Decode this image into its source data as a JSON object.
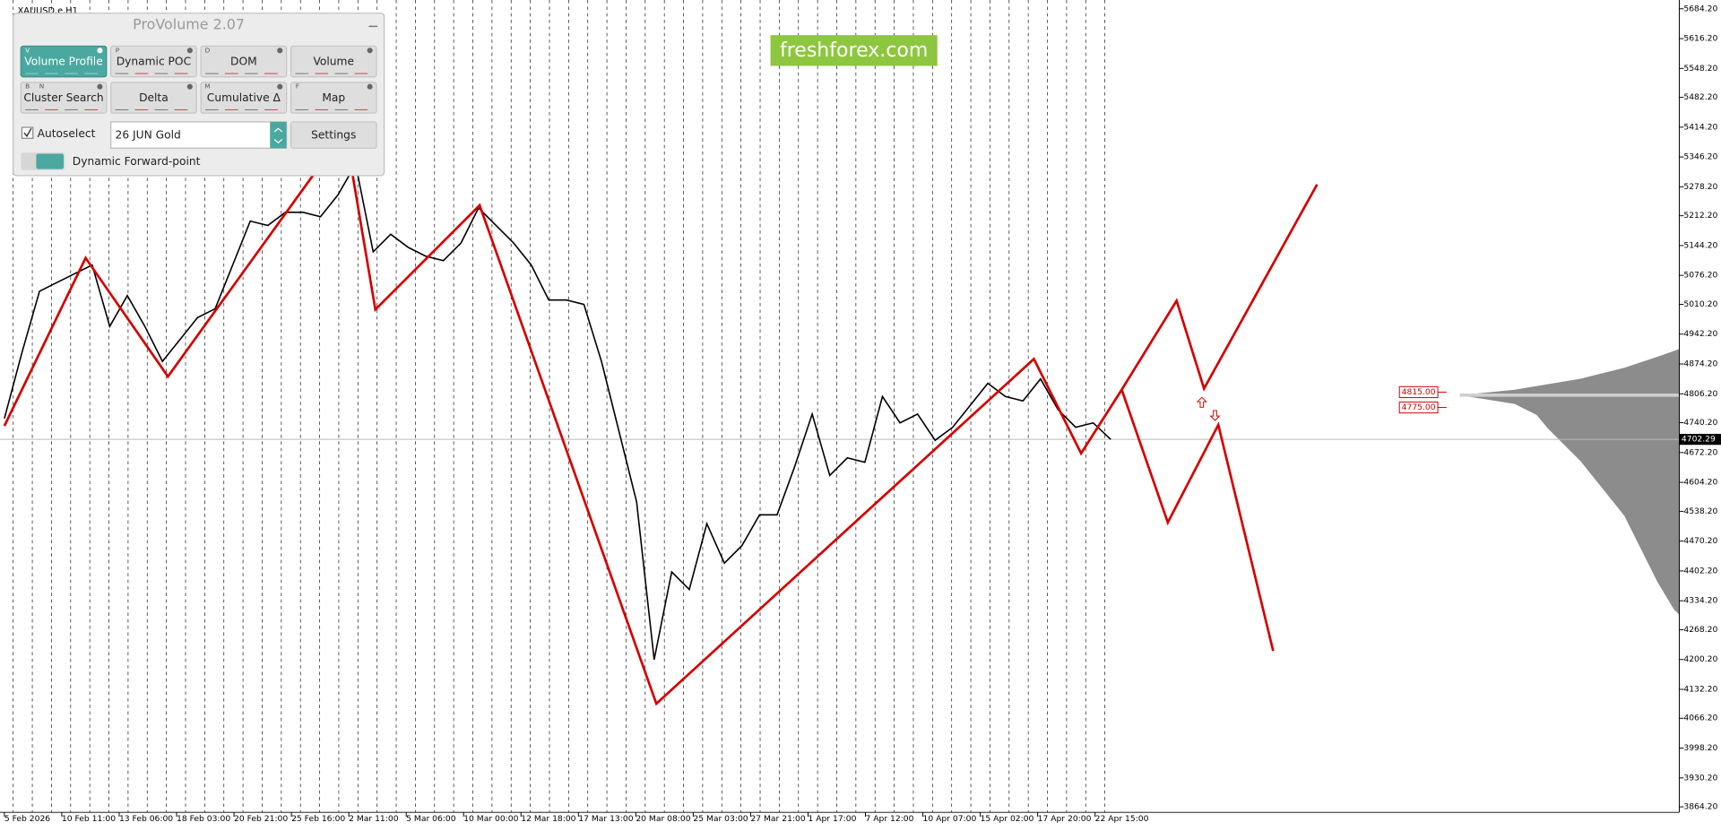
{
  "chart_label": "XAUUSD.e,H1",
  "watermark": "freshforex.com",
  "panel": {
    "title": "ProVolume 2.07",
    "buttons": [
      {
        "label": "Volume Profile",
        "keys": [
          "V"
        ],
        "active": true
      },
      {
        "label": "Dynamic POC",
        "keys": [
          "P"
        ]
      },
      {
        "label": "DOM",
        "keys": [
          "D"
        ]
      },
      {
        "label": "Volume",
        "keys": []
      },
      {
        "label": "Cluster Search",
        "keys": [
          "B",
          "N"
        ]
      },
      {
        "label": "Delta",
        "keys": []
      },
      {
        "label": "Cumulative Δ",
        "keys": [
          "M"
        ]
      },
      {
        "label": "Map",
        "keys": [
          "F"
        ]
      }
    ],
    "autoselect": "Autoselect",
    "instrument": "26 JUN Gold",
    "settings": "Settings",
    "forward_point": "Dynamic Forward-point"
  },
  "chart": {
    "ylim": [
      3851.7,
      5704.2
    ],
    "yticks": [
      {
        "value": 5684.2,
        "label": "5684.20"
      },
      {
        "value": 5616.2,
        "label": "5616.20"
      },
      {
        "value": 5548.2,
        "label": "5548.20"
      },
      {
        "value": 5482.2,
        "label": "5482.20"
      },
      {
        "value": 5414.2,
        "label": "5414.20"
      },
      {
        "value": 5346.2,
        "label": "5346.20"
      },
      {
        "value": 5278.2,
        "label": "5278.20"
      },
      {
        "value": 5212.2,
        "label": "5212.20"
      },
      {
        "value": 5144.2,
        "label": "5144.20"
      },
      {
        "value": 5076.2,
        "label": "5076.20"
      },
      {
        "value": 5010.2,
        "label": "5010.20"
      },
      {
        "value": 4942.2,
        "label": "4942.20"
      },
      {
        "value": 4874.2,
        "label": "4874.20"
      },
      {
        "value": 4806.2,
        "label": "4806.20"
      },
      {
        "value": 4740.2,
        "label": "4740.20"
      },
      {
        "value": 4672.2,
        "label": "4672.20"
      },
      {
        "value": 4604.2,
        "label": "4604.20"
      },
      {
        "value": 4538.2,
        "label": "4538.20"
      },
      {
        "value": 4470.2,
        "label": "4470.20"
      },
      {
        "value": 4402.2,
        "label": "4402.20"
      },
      {
        "value": 4334.2,
        "label": "4334.20"
      },
      {
        "value": 4268.2,
        "label": "4268.20"
      },
      {
        "value": 4200.2,
        "label": "4200.20"
      },
      {
        "value": 4132.2,
        "label": "4132.20"
      },
      {
        "value": 4066.2,
        "label": "4066.20"
      },
      {
        "value": 3998.2,
        "label": "3998.20"
      },
      {
        "value": 3930.2,
        "label": "3930.20"
      },
      {
        "value": 3864.2,
        "label": "3864.20"
      }
    ],
    "xlabels": [
      "5 Feb 2026",
      "10 Feb 11:00",
      "13 Feb 06:00",
      "18 Feb 03:00",
      "20 Feb 21:00",
      "25 Feb 16:00",
      "2 Mar 11:00",
      "5 Mar 06:00",
      "10 Mar 00:00",
      "12 Mar 18:00",
      "17 Mar 13:00",
      "20 Mar 08:00",
      "25 Mar 03:00",
      "27 Mar 21:00",
      "1 Apr 17:00",
      "7 Apr 12:00",
      "10 Apr 07:00",
      "15 Apr 02:00",
      "17 Apr 20:00",
      "22 Apr 15:00"
    ],
    "price": [
      4750,
      4900,
      5040,
      5060,
      5080,
      5100,
      4960,
      5030,
      4960,
      4880,
      4930,
      4980,
      5000,
      5100,
      5200,
      5190,
      5220,
      5220,
      5210,
      5260,
      5330,
      5130,
      5170,
      5140,
      5120,
      5110,
      5150,
      5230,
      5190,
      5150,
      5100,
      5020,
      5020,
      5010,
      4880,
      4720,
      4560,
      4200,
      4400,
      4360,
      4510,
      4420,
      4460,
      4530,
      4530,
      4640,
      4760,
      4620,
      4660,
      4650,
      4800,
      4740,
      4760,
      4700,
      4730,
      4780,
      4830,
      4800,
      4790,
      4840,
      4770,
      4730,
      4740,
      4702
    ],
    "current_price": 4702.29,
    "levels": [
      {
        "value": 4815,
        "label": "4815.00"
      },
      {
        "value": 4775,
        "label": "4775.00"
      }
    ]
  }
}
